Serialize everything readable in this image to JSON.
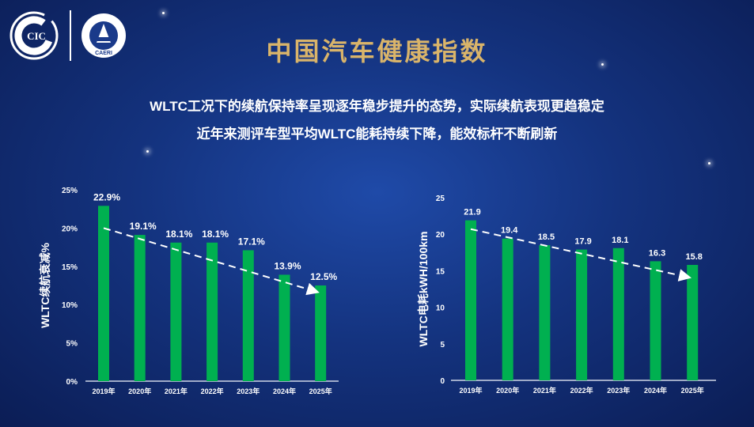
{
  "logos": {
    "left": "CIC",
    "right": "CAERI"
  },
  "title": "中国汽车健康指数",
  "subtitles": [
    "WLTC工况下的续航保持率呈现逐年稳步提升的态势，实际续航表现更趋稳定",
    "近年来测评车型平均WLTC能耗持续下降，能效标杆不断刷新"
  ],
  "colors": {
    "bar": "#00b050",
    "title": "#d9b46a",
    "text": "#ffffff"
  },
  "chart_data": [
    {
      "type": "bar",
      "title": "",
      "xlabel": "",
      "ylabel": "WLTC续航衰减%",
      "categories": [
        "2019年",
        "2020年",
        "2021年",
        "2022年",
        "2023年",
        "2024年",
        "2025年"
      ],
      "values": [
        22.9,
        19.1,
        18.1,
        18.1,
        17.1,
        13.9,
        12.5
      ],
      "labels": [
        "22.9%",
        "19.1%",
        "18.1%",
        "18.1%",
        "17.1%",
        "13.9%",
        "12.5%"
      ],
      "ylim": [
        0,
        25
      ],
      "yticks": [
        "0%",
        "5%",
        "10%",
        "15%",
        "20%",
        "25%"
      ],
      "trend": "dashed arrow decreasing",
      "grid": false
    },
    {
      "type": "bar",
      "title": "",
      "xlabel": "",
      "ylabel": "WLTC电耗kWH/100km",
      "categories": [
        "2019年",
        "2020年",
        "2021年",
        "2022年",
        "2023年",
        "2024年",
        "2025年"
      ],
      "values": [
        21.9,
        19.4,
        18.5,
        17.9,
        18.1,
        16.3,
        15.8
      ],
      "labels": [
        "21.9",
        "19.4",
        "18.5",
        "17.9",
        "18.1",
        "16.3",
        "15.8"
      ],
      "ylim": [
        0,
        25
      ],
      "yticks": [
        "0",
        "5",
        "10",
        "15",
        "20",
        "25"
      ],
      "trend": "dashed arrow decreasing",
      "grid": false
    }
  ]
}
